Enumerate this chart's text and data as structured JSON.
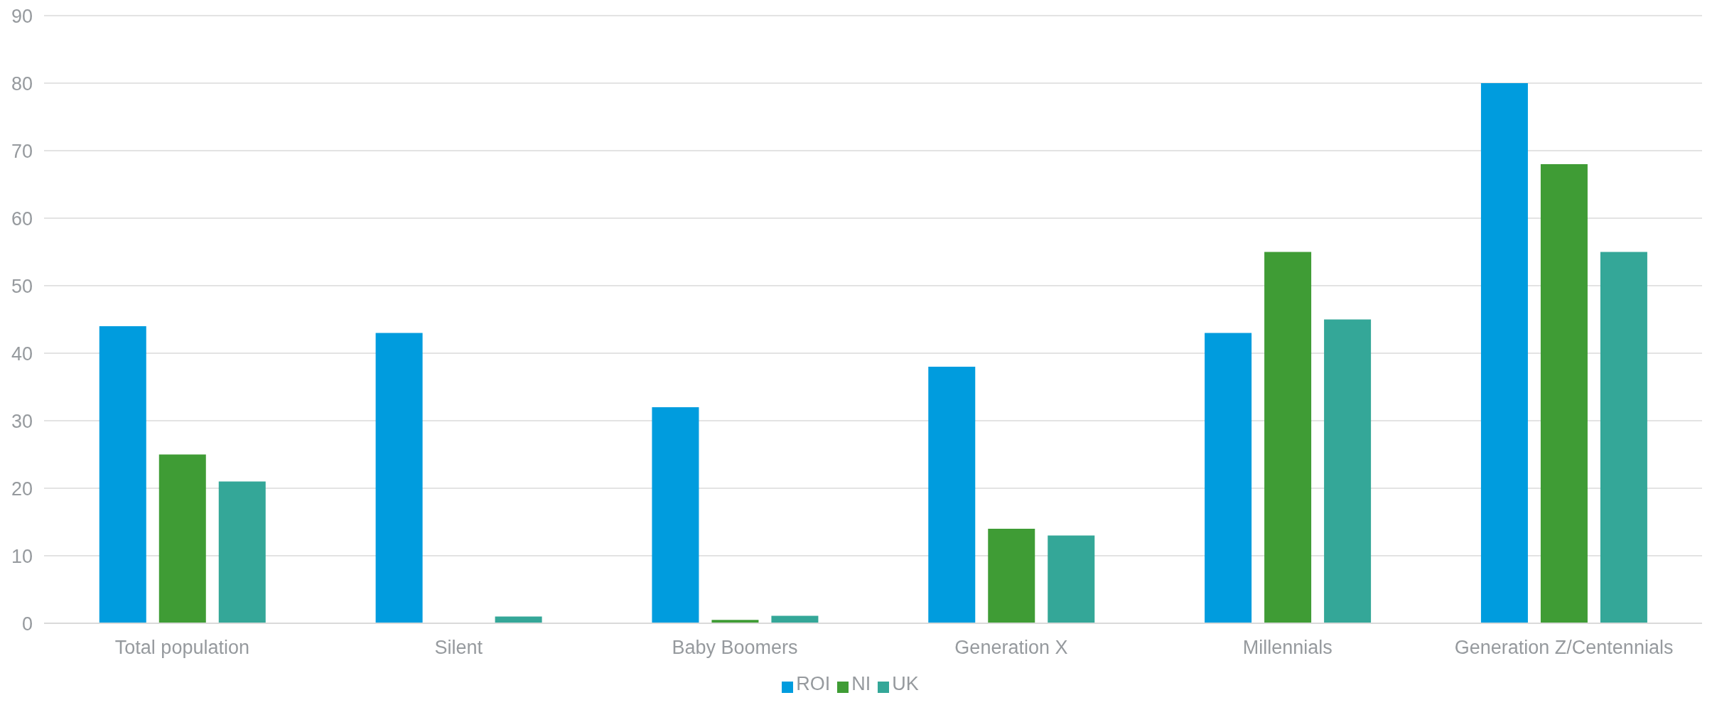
{
  "chart_data": {
    "type": "bar",
    "categories": [
      "Total population",
      "Silent",
      "Baby Boomers",
      "Generation X",
      "Millennials",
      "Generation Z/Centennials"
    ],
    "series": [
      {
        "name": "ROI",
        "color": "#009cde",
        "values": [
          44,
          43,
          32,
          38,
          43,
          80
        ]
      },
      {
        "name": "NI",
        "color": "#3f9c35",
        "values": [
          25,
          0,
          0.5,
          14,
          55,
          68
        ]
      },
      {
        "name": "UK",
        "color": "#34a798",
        "values": [
          21,
          1,
          1.1,
          13,
          45,
          55
        ]
      }
    ],
    "ylim": [
      0,
      90
    ],
    "yticks": [
      0,
      10,
      20,
      30,
      40,
      50,
      60,
      70,
      80,
      90
    ],
    "grid": "y",
    "legend": "bottom"
  }
}
